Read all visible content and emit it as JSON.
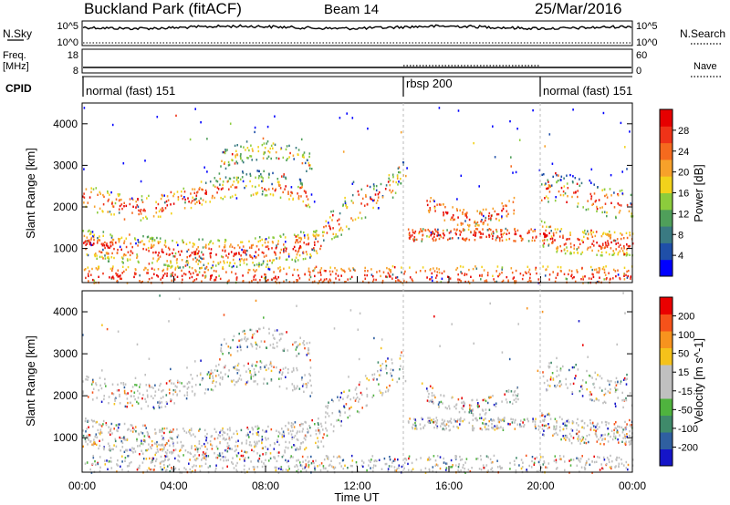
{
  "chart_data": {
    "type": "heatmap",
    "header": {
      "title": "Buckland Park (fitACF)",
      "beam": "Beam 14",
      "date": "25/Mar/2016"
    },
    "top_strip": {
      "nsky_label": "N.Sky",
      "nsky_ticks": [
        "10^5",
        "10^0"
      ],
      "nsearch_label": "N.Search",
      "nsearch_ticks": [
        "10^5",
        "10^0"
      ],
      "freq_label": "Freq.",
      "freq_unit": "[MHz]",
      "freq_ticks": [
        "18",
        "8"
      ],
      "nave_label": "Nave",
      "nave_ticks": [
        "60",
        "0"
      ],
      "cpid_label": "CPID",
      "cpid_segments": [
        {
          "label": "normal (fast) 151",
          "start_h": 0,
          "end_h": 14
        },
        {
          "label": "rbsp 200",
          "start_h": 14,
          "end_h": 20
        },
        {
          "label": "normal (fast) 151",
          "start_h": 20,
          "end_h": 24
        }
      ]
    },
    "x": {
      "label": "Time UT",
      "range_h": [
        0,
        24
      ],
      "ticks": [
        "00:00",
        "04:00",
        "08:00",
        "12:00",
        "16:00",
        "20:00",
        "00:00"
      ]
    },
    "panels": [
      {
        "name": "power",
        "ylabel": "Slant Range [km]",
        "yticks": [
          "4000",
          "3000",
          "2000",
          "1000"
        ],
        "colorbar_label": "Power [dB]",
        "colorbar_ticks": [
          "28",
          "24",
          "20",
          "16",
          "12",
          "8",
          "4"
        ],
        "colors": [
          "#0000ff",
          "#1f4fa8",
          "#3a7a82",
          "#4f9f5a",
          "#8ccc3c",
          "#f2d21b",
          "#f7a12a",
          "#f56a1e",
          "#ef3318",
          "#e60000"
        ]
      },
      {
        "name": "velocity",
        "ylabel": "Slant Range [km]",
        "yticks": [
          "4000",
          "3000",
          "2000",
          "1000"
        ],
        "colorbar_label": "Velocity [m s^-1]",
        "colorbar_ticks": [
          "200",
          "100",
          "50",
          "15",
          "-15",
          "-50",
          "-100",
          "-200"
        ],
        "colors": [
          "#1515c8",
          "#2f5fa0",
          "#3f8a6a",
          "#4fb33e",
          "#c0c0c0",
          "#c0c0c0",
          "#f5c21a",
          "#f7931e",
          "#f5521a",
          "#ea0000"
        ]
      }
    ]
  }
}
